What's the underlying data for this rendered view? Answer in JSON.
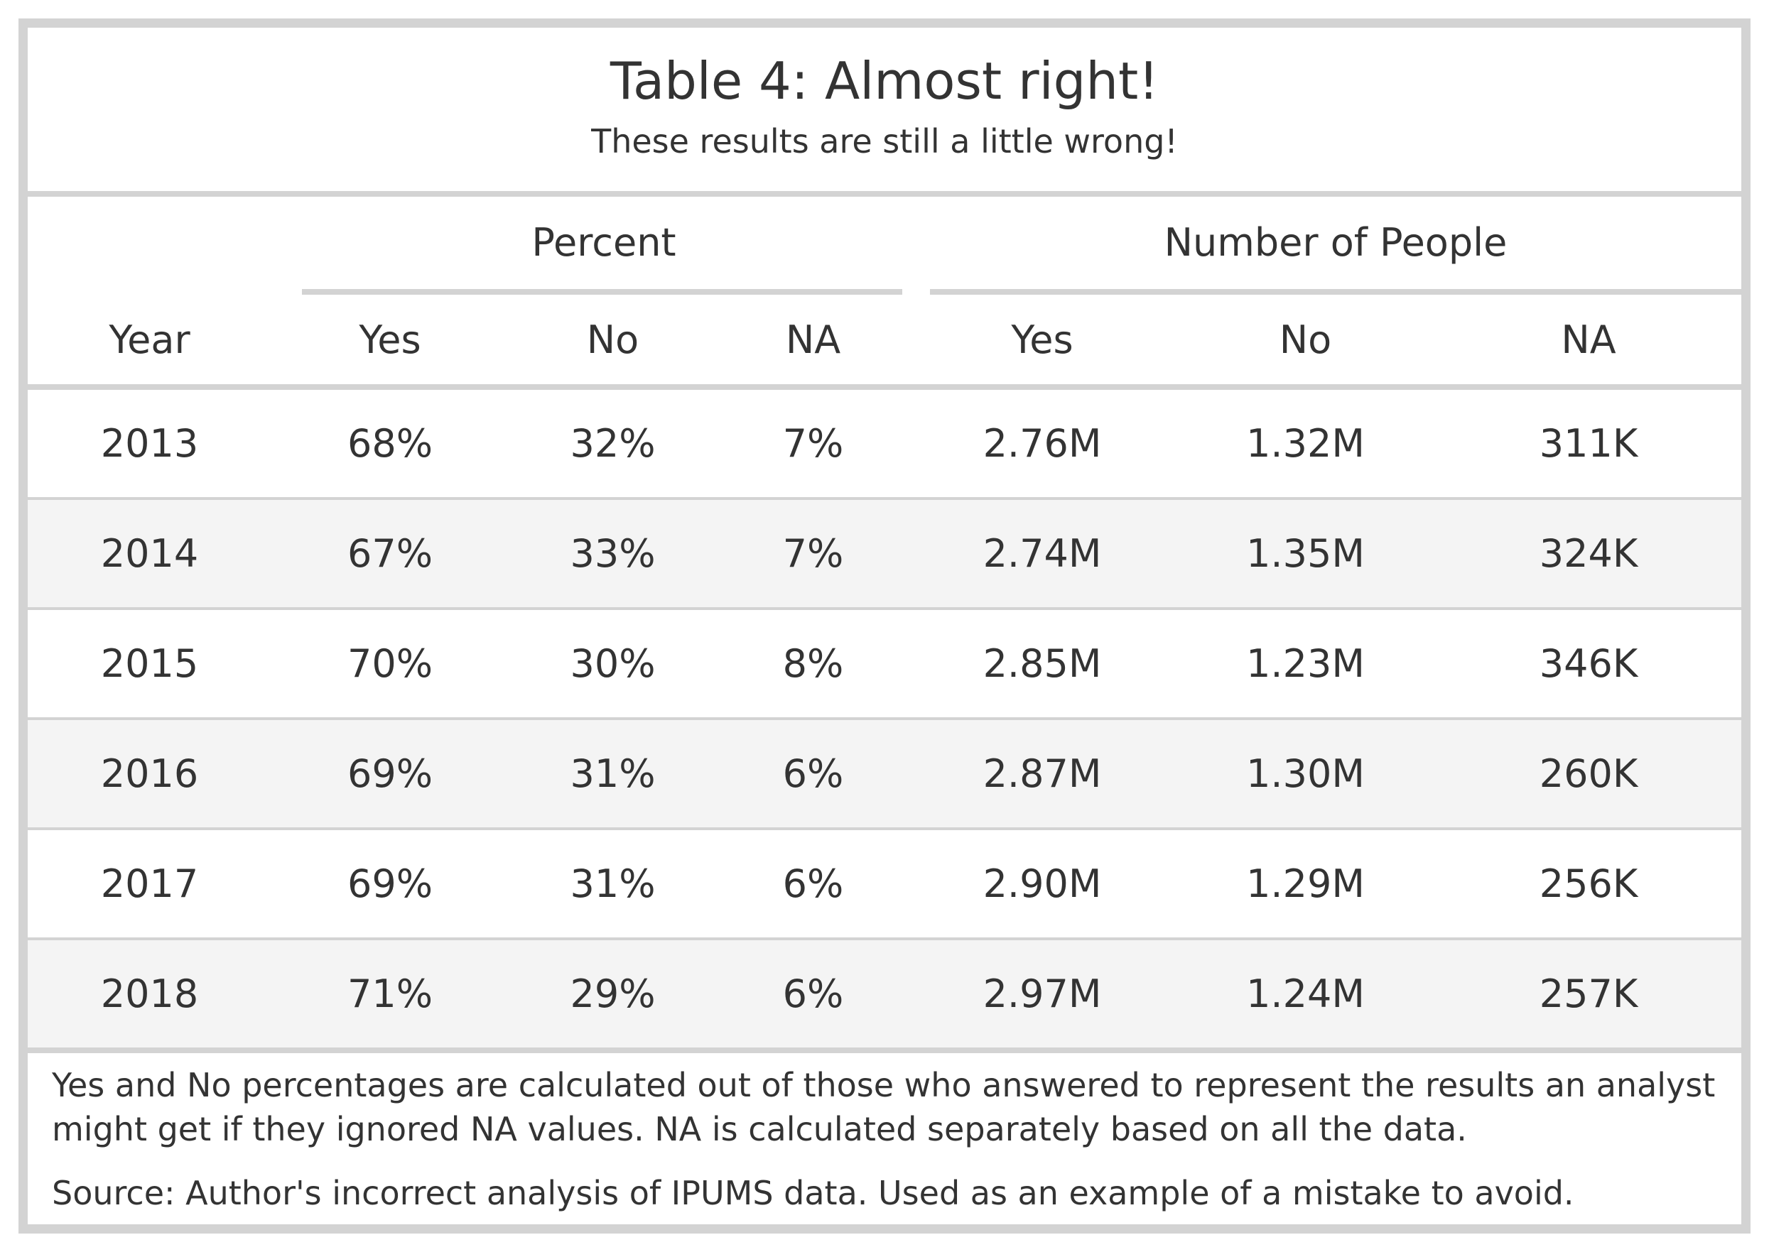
{
  "table": {
    "title": "Table 4: Almost right!",
    "subtitle": "These results are still a little wrong!",
    "spanners": {
      "percent": "Percent",
      "people": "Number of People"
    },
    "columns": [
      "Year",
      "Yes",
      "No",
      "NA",
      "Yes",
      "No",
      "NA"
    ],
    "rows": [
      [
        "2013",
        "68%",
        "32%",
        "7%",
        "2.76M",
        "1.32M",
        "311K"
      ],
      [
        "2014",
        "67%",
        "33%",
        "7%",
        "2.74M",
        "1.35M",
        "324K"
      ],
      [
        "2015",
        "70%",
        "30%",
        "8%",
        "2.85M",
        "1.23M",
        "346K"
      ],
      [
        "2016",
        "69%",
        "31%",
        "6%",
        "2.87M",
        "1.30M",
        "260K"
      ],
      [
        "2017",
        "69%",
        "31%",
        "6%",
        "2.90M",
        "1.29M",
        "256K"
      ],
      [
        "2018",
        "71%",
        "29%",
        "6%",
        "2.97M",
        "1.24M",
        "257K"
      ]
    ],
    "footnote": "Yes and No percentages are calculated out of those who answered to represent the results an analyst might get if they ignored NA values. NA is calculated separately based on all the data.",
    "source": "Source: Author's incorrect analysis of IPUMS data. Used as an example of a mistake to avoid."
  },
  "colors": {
    "border": "#d3d3d3",
    "stripe": "#f4f4f4",
    "text": "#333333"
  }
}
